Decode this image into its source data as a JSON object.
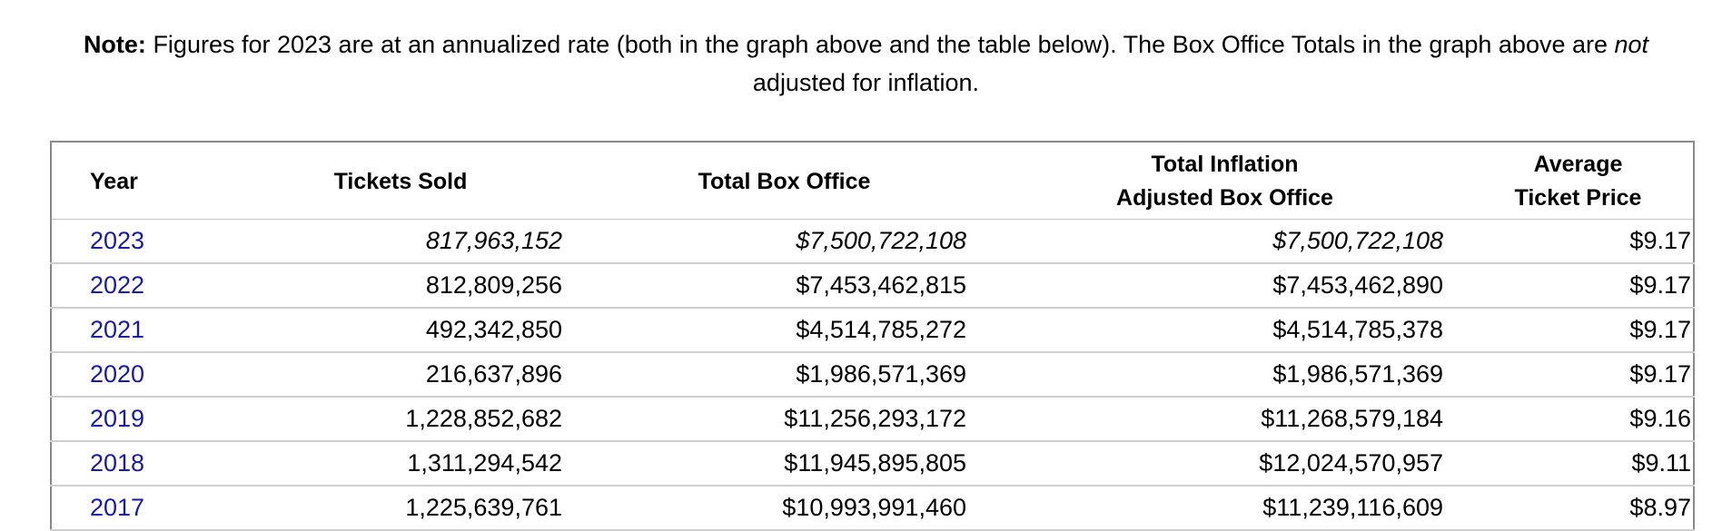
{
  "note": {
    "label": "Note:",
    "text_before": " Figures for 2023 are at an annualized rate (both in the graph above and the table below). The Box Office Totals in the graph above are ",
    "emphasis": "not",
    "text_after": " adjusted for inflation."
  },
  "table": {
    "headers": {
      "year": "Year",
      "tickets": "Tickets Sold",
      "box_office": "Total Box Office",
      "inflation_line1": "Total Inflation",
      "inflation_line2": "Adjusted Box Office",
      "avg_line1": "Average",
      "avg_line2": "Ticket Price"
    },
    "rows": [
      {
        "year": "2023",
        "tickets": "817,963,152",
        "box_office": "$7,500,722,108",
        "inflation": "$7,500,722,108",
        "avg": "$9.17"
      },
      {
        "year": "2022",
        "tickets": "812,809,256",
        "box_office": "$7,453,462,815",
        "inflation": "$7,453,462,890",
        "avg": "$9.17"
      },
      {
        "year": "2021",
        "tickets": "492,342,850",
        "box_office": "$4,514,785,272",
        "inflation": "$4,514,785,378",
        "avg": "$9.17"
      },
      {
        "year": "2020",
        "tickets": "216,637,896",
        "box_office": "$1,986,571,369",
        "inflation": "$1,986,571,369",
        "avg": "$9.17"
      },
      {
        "year": "2019",
        "tickets": "1,228,852,682",
        "box_office": "$11,256,293,172",
        "inflation": "$11,268,579,184",
        "avg": "$9.16"
      },
      {
        "year": "2018",
        "tickets": "1,311,294,542",
        "box_office": "$11,945,895,805",
        "inflation": "$12,024,570,957",
        "avg": "$9.11"
      },
      {
        "year": "2017",
        "tickets": "1,225,639,761",
        "box_office": "$10,993,991,460",
        "inflation": "$11,239,116,609",
        "avg": "$8.97"
      }
    ]
  },
  "colors": {
    "year_link": "#1a1aa6"
  }
}
